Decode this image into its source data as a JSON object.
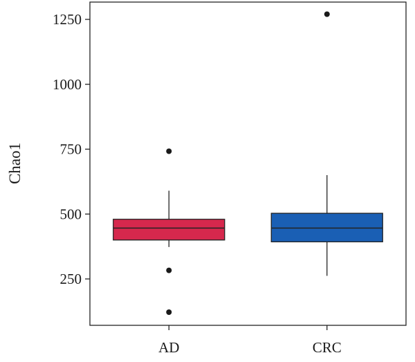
{
  "chart_data": {
    "type": "box",
    "title": "",
    "xlabel": "",
    "ylabel": "Chao1",
    "ylim": [
      25,
      1300
    ],
    "y_ticks": [
      250,
      500,
      750,
      1000,
      1250
    ],
    "grid": false,
    "legend": "none",
    "categories": [
      "AD",
      "CRC"
    ],
    "groups": [
      {
        "name": "AD",
        "color": "#d6284d",
        "whisker_low": 373,
        "q1": 400,
        "median": 446,
        "q3": 480,
        "whisker_high": 590,
        "outliers": [
          742,
          283,
          122
        ]
      },
      {
        "name": "CRC",
        "color": "#1a5fb4",
        "whisker_low": 262,
        "q1": 393,
        "median": 446,
        "q3": 503,
        "whisker_high": 650,
        "outliers": [
          1270
        ]
      }
    ]
  }
}
